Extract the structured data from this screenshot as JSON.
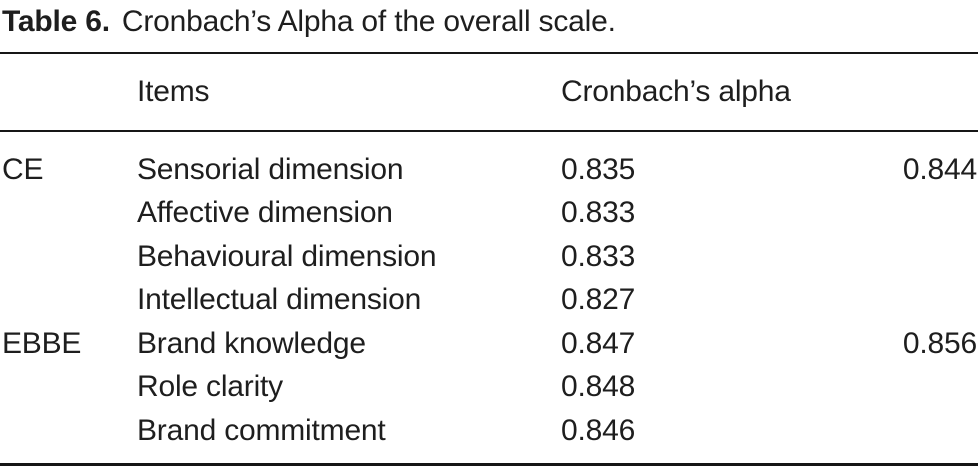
{
  "caption": {
    "label": "Table 6.",
    "text": "Cronbach’s Alpha of the overall scale."
  },
  "table": {
    "headers": {
      "group": "",
      "items": "Items",
      "alpha": "Cronbach’s alpha",
      "overall": ""
    },
    "rows": [
      {
        "group": "CE",
        "item": "Sensorial dimension",
        "alpha": "0.835",
        "overall": "0.844"
      },
      {
        "group": "",
        "item": "Affective dimension",
        "alpha": "0.833",
        "overall": ""
      },
      {
        "group": "",
        "item": "Behavioural dimension",
        "alpha": "0.833",
        "overall": ""
      },
      {
        "group": "",
        "item": "Intellectual dimension",
        "alpha": "0.827",
        "overall": ""
      },
      {
        "group": "EBBE",
        "item": "Brand knowledge",
        "alpha": "0.847",
        "overall": "0.856"
      },
      {
        "group": "",
        "item": "Role clarity",
        "alpha": "0.848",
        "overall": ""
      },
      {
        "group": "",
        "item": "Brand commitment",
        "alpha": "0.846",
        "overall": ""
      }
    ]
  },
  "colors": {
    "background": "#ffffff",
    "text": "#1e1e1e",
    "rule": "#161616"
  }
}
